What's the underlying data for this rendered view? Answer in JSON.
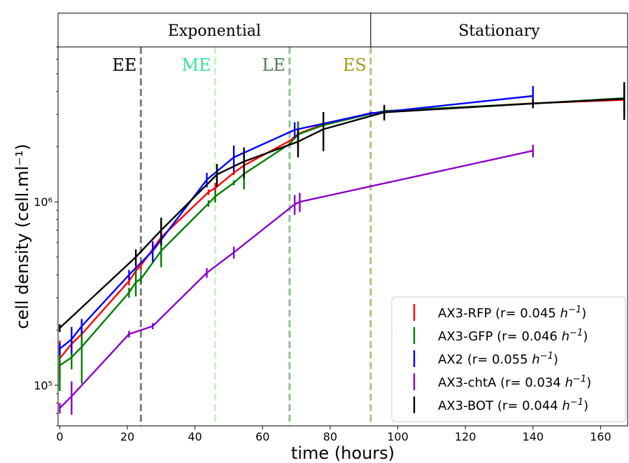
{
  "chart_data": {
    "type": "line",
    "xlabel": "time (hours)",
    "ylabel": "cell density (cell.ml⁻¹)",
    "xlim": [
      -0.5,
      168
    ],
    "ylim": [
      60000,
      7000000
    ],
    "yscale": "log",
    "x_ticks": [
      0,
      20,
      40,
      60,
      80,
      100,
      120,
      140,
      160
    ],
    "y_ticks": [
      {
        "value": 100000,
        "label": "10⁵"
      },
      {
        "value": 1000000,
        "label": "10⁶"
      }
    ],
    "phases": [
      {
        "label": "Exponential",
        "start": -0.5,
        "end": 92
      },
      {
        "label": "Stationary",
        "start": 92,
        "end": 168
      }
    ],
    "phase_band_ylim": [
      7000000,
      10700000
    ],
    "vlines": [
      {
        "label": "EE",
        "x": 24,
        "color": "#808080"
      },
      {
        "label": "ME",
        "x": 46,
        "color": "#c9f2c4"
      },
      {
        "label": "LE",
        "x": 68,
        "color": "#8dc48d"
      },
      {
        "label": "ES",
        "x": 92,
        "color": "#bdbb80"
      }
    ],
    "vline_label_colors": [
      "#000000",
      "#33e29a",
      "#4f7f4f",
      "#9c9c1c"
    ],
    "legend_position": "lower-right",
    "series": [
      {
        "name": "AX3-RFP (r= 0.045",
        "color": "#ff0000",
        "x": [
          0,
          3.5,
          6.5,
          20.5,
          22.5,
          24,
          30,
          44,
          46,
          51.5,
          54.5,
          68,
          70.5,
          78,
          92,
          96,
          140,
          167
        ],
        "y": [
          140000,
          168000,
          190000,
          370000,
          420000,
          450000,
          640000,
          1130000,
          1190000,
          1440000,
          1580000,
          2150000,
          2350000,
          2650000,
          3050000,
          3080000,
          3450000,
          3600000
        ],
        "err": [
          35000,
          20000,
          35000,
          20000,
          60000,
          20000,
          140000,
          40000,
          80000,
          40000,
          250000,
          30000,
          400000,
          20000,
          50000,
          200000,
          50000,
          600000
        ]
      },
      {
        "name": "AX3-GFP (r= 0.046",
        "color": "#007f00",
        "x": [
          0,
          3.5,
          6.5,
          20.5,
          22.5,
          24,
          30,
          44,
          46,
          51.5,
          54.5,
          68,
          70.5,
          78,
          92,
          96,
          140,
          167
        ],
        "y": [
          128000,
          142000,
          162000,
          320000,
          365000,
          380000,
          540000,
          980000,
          1070000,
          1270000,
          1420000,
          2070000,
          2330000,
          2620000,
          3020000,
          3130000,
          3440000,
          3680000
        ],
        "err": [
          35000,
          20000,
          60000,
          20000,
          60000,
          20000,
          100000,
          40000,
          80000,
          40000,
          250000,
          30000,
          400000,
          20000,
          50000,
          200000,
          50000,
          600000
        ]
      },
      {
        "name": "AX2 (r= 0.055",
        "color": "#0000ff",
        "x": [
          0,
          3.5,
          6.5,
          20.5,
          27.5,
          43.5,
          51.5,
          69.5,
          92,
          140
        ],
        "y": [
          158000,
          178000,
          210000,
          400000,
          540000,
          1320000,
          1750000,
          2470000,
          3040000,
          3780000
        ],
        "err": [
          12000,
          30000,
          20000,
          25000,
          70000,
          120000,
          280000,
          250000,
          50000,
          500000
        ]
      },
      {
        "name": "AX3-chtA (r= 0.034",
        "color": "#8a00c8",
        "x": [
          0,
          3.5,
          20.5,
          27.5,
          43.5,
          51.5,
          69.5,
          71,
          140
        ],
        "y": [
          75000,
          87000,
          190000,
          210000,
          410000,
          530000,
          970000,
          1000000,
          1900000
        ],
        "err": [
          5000,
          18000,
          8000,
          8000,
          25000,
          40000,
          120000,
          120000,
          150000
        ]
      },
      {
        "name": "AX3-BOT (r= 0.044",
        "color": "#000000",
        "x": [
          0,
          22.5,
          30,
          46.5,
          54.5,
          70.5,
          78,
          96,
          140,
          167
        ],
        "y": [
          205000,
          500000,
          700000,
          1410000,
          1660000,
          2130000,
          2490000,
          3080000,
          3440000,
          3650000
        ],
        "err": [
          10000,
          50000,
          120000,
          200000,
          320000,
          380000,
          600000,
          300000,
          200000,
          850000
        ]
      }
    ],
    "legend_unit": "h",
    "legend_unit_exp": "−1",
    "legend_close": ")"
  }
}
